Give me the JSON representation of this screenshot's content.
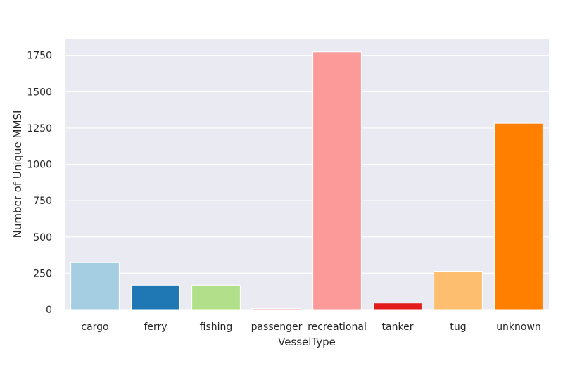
{
  "chart_data": {
    "type": "bar",
    "title": "",
    "xlabel": "VesselType",
    "ylabel": "Number of Unique MMSI",
    "categories": [
      "cargo",
      "ferry",
      "fishing",
      "passenger",
      "recreational",
      "tanker",
      "tug",
      "unknown"
    ],
    "values": [
      323,
      168,
      168,
      7,
      1774,
      45,
      264,
      1283
    ],
    "colors": [
      "#a6cee3",
      "#1f78b4",
      "#b2df8a",
      "#fb9a99",
      "#fb9a99",
      "#e31a1c",
      "#fdbf6f",
      "#ff7f00"
    ],
    "ylim": [
      0,
      1865
    ],
    "yticks": [
      0,
      250,
      500,
      750,
      1000,
      1250,
      1500,
      1750
    ],
    "grid": true,
    "background": "#eaeaf2",
    "grid_color": "#ffffff"
  }
}
